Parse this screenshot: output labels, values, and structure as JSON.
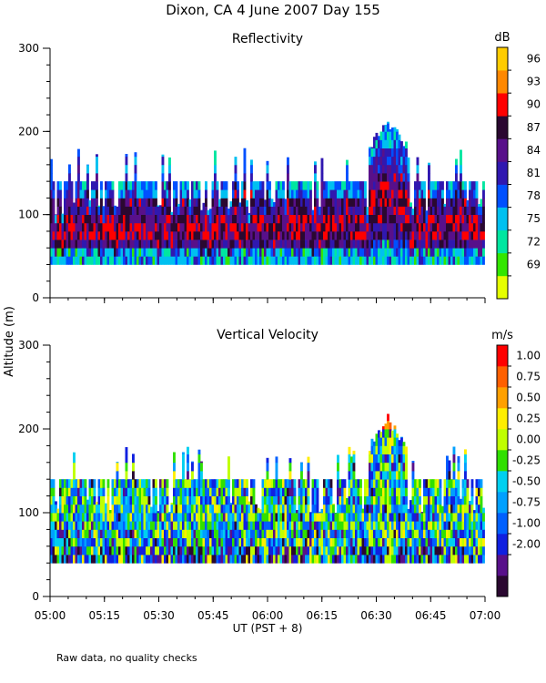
{
  "header": {
    "title": "Dixon, CA  4 June 2007  Day 155",
    "y_axis_label": "Altitude (m)",
    "x_axis_label": "UT  (PST + 8)",
    "footnote": "Raw data, no quality checks"
  },
  "chart_data": [
    {
      "type": "heatmap",
      "title": "Reflectivity",
      "ylabel": "Altitude (m)",
      "xlabel": "UT  (PST + 8)",
      "ylim": [
        0,
        300
      ],
      "y_ticks": [
        "0",
        "100",
        "200",
        "300"
      ],
      "x_ticks": [
        "05:00",
        "05:15",
        "05:30",
        "05:45",
        "06:00",
        "06:15",
        "06:30",
        "06:45",
        "07:00"
      ],
      "time_range": [
        "05:00",
        "07:00"
      ],
      "colorbar": {
        "unit": "dB",
        "ticks": [
          "96",
          "93",
          "90",
          "87",
          "84",
          "81",
          "78",
          "75",
          "72",
          "69"
        ],
        "colors": [
          "#e6ff00",
          "#33e600",
          "#00e6a0",
          "#00c0f0",
          "#0050ff",
          "#3018b0",
          "#58108a",
          "#2a0830",
          "#ff0000",
          "#ff8800",
          "#ffcc00"
        ]
      },
      "data_extent": {
        "base_altitude_m": 40,
        "typical_top_altitude_m": 140,
        "max_top_altitude_m": 220,
        "peak_time": "06:33"
      }
    },
    {
      "type": "heatmap",
      "title": "Vertical Velocity",
      "ylabel": "Altitude (m)",
      "xlabel": "UT  (PST + 8)",
      "ylim": [
        0,
        300
      ],
      "y_ticks": [
        "0",
        "100",
        "200",
        "300"
      ],
      "x_ticks": [
        "05:00",
        "05:15",
        "05:30",
        "05:45",
        "06:00",
        "06:15",
        "06:30",
        "06:45",
        "07:00"
      ],
      "time_range": [
        "05:00",
        "07:00"
      ],
      "colorbar": {
        "unit": "m/s",
        "ticks": [
          "1.00",
          "0.75",
          "0.50",
          "0.25",
          "0.00",
          "-0.25",
          "-0.50",
          "-0.75",
          "-1.00",
          "-2.00"
        ],
        "colors": [
          "#2a0830",
          "#58108a",
          "#1020e0",
          "#0060ff",
          "#00a0ff",
          "#00d0f0",
          "#30e000",
          "#c0ff00",
          "#ffee00",
          "#ffa000",
          "#ff6000",
          "#ff0000"
        ]
      },
      "data_extent": {
        "base_altitude_m": 40,
        "typical_top_altitude_m": 140,
        "max_top_altitude_m": 220,
        "peak_time": "06:33"
      }
    }
  ]
}
